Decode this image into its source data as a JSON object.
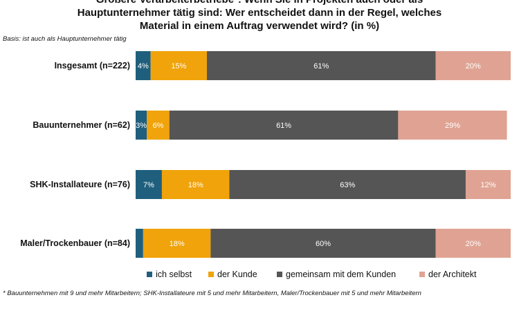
{
  "title": {
    "line1": "Größere Verarbeiterbetriebe*: Wenn Sie in Projekten auch oder als",
    "line2": "Hauptunternehmer tätig sind: Wer entscheidet dann in der Regel, welches",
    "line3": "Material in einem Auftrag verwendet wird? (in %)"
  },
  "basis": "Basis: ist auch als Hauptunternehmer tätig",
  "footnote": "* Bauunternehmen mit 9 und mehr Mitarbeitern; SHK-Installateure mit 5 und mehr Mitarbeitern, Maler/Trockenbauer mit 5 und mehr Mitarbeitern",
  "colors": {
    "ich_selbst": "#1f5f7d",
    "der_kunde": "#f0a30a",
    "gemeinsam": "#555555",
    "architekt": "#e0a393"
  },
  "chart_data": {
    "type": "bar",
    "orientation": "horizontal",
    "stacked": true,
    "categories": [
      "Insgesamt (n=222)",
      "Bauunternehmer (n=62)",
      "SHK-Installateure (n=76)",
      "Maler/Trockenbauer (n=84)"
    ],
    "series": [
      {
        "name": "ich selbst",
        "values": [
          4,
          3,
          7,
          2
        ],
        "labels": [
          "4%",
          "3%",
          "7%",
          ""
        ]
      },
      {
        "name": "der Kunde",
        "values": [
          15,
          6,
          18,
          18
        ],
        "labels": [
          "15%",
          "6%",
          "18%",
          "18%"
        ]
      },
      {
        "name": "gemeinsam mit dem Kunden",
        "values": [
          61,
          61,
          63,
          60
        ],
        "labels": [
          "61%",
          "61%",
          "63%",
          "60%"
        ]
      },
      {
        "name": "der Architekt",
        "values": [
          20,
          29,
          12,
          20
        ],
        "labels": [
          "20%",
          "29%",
          "12%",
          "20%"
        ]
      }
    ],
    "xlim": [
      0,
      100
    ],
    "legend_position": "bottom"
  }
}
